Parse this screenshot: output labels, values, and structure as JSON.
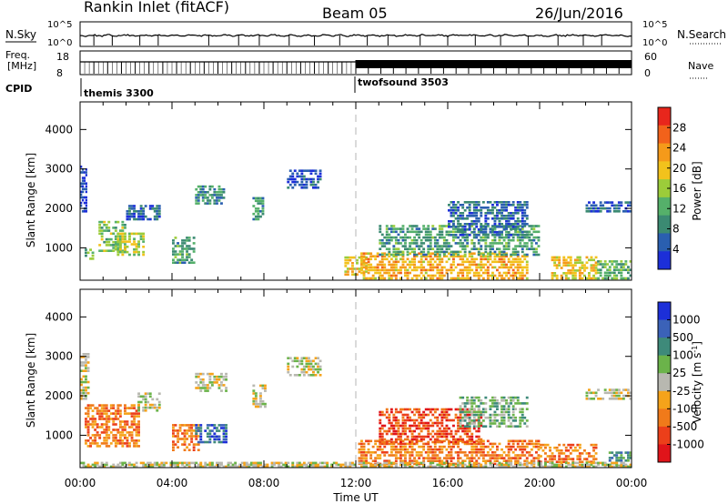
{
  "header": {
    "title": "Rankin Inlet (fitACF)",
    "beam": "Beam 05",
    "date": "26/Jun/2016"
  },
  "panels": {
    "nsky_label": "N.Sky",
    "nsearch_label": "N.Search",
    "nsky_ticks": [
      "10^5",
      "10^0"
    ],
    "nsearch_ticks": [
      "10^5",
      "10^0"
    ],
    "freq_label": "Freq.",
    "freq_unit": "[MHz]",
    "freq_ticks": [
      "18",
      "8"
    ],
    "nave_label": "Nave",
    "nave_ticks": [
      "60",
      "0"
    ],
    "cpid_label": "CPID",
    "cpid_1": "themis 3300",
    "cpid_2": "twofsound 3503"
  },
  "colors": {
    "power_scale": [
      "#1c2fd8",
      "#2a5fb0",
      "#3b8a72",
      "#55b06a",
      "#9ccc3a",
      "#f2c21c",
      "#f59a1a",
      "#f2621b",
      "#e8261c"
    ],
    "velocity_scale": [
      "#1c2fd8",
      "#3b62b8",
      "#3e8a7a",
      "#6bb34a",
      "#b8b8b0",
      "#f5a31a",
      "#f07a1a",
      "#ec3f1a",
      "#e0141a"
    ],
    "dashed_line": "#b4b4b4"
  },
  "chart_data": [
    {
      "type": "heatmap",
      "title": "Power",
      "xlabel": "",
      "ylabel": "Slant Range [km]",
      "xlim": [
        "00:00",
        "24:00"
      ],
      "ylim": [
        180,
        4700
      ],
      "y_ticks": [
        1000,
        2000,
        3000,
        4000
      ],
      "colorbar_label": "Power [dB]",
      "colorbar_ticks": [
        4,
        8,
        12,
        16,
        20,
        24,
        28
      ],
      "colorbar_range": [
        0,
        32
      ],
      "marker_time": "12:00",
      "regions": [
        {
          "t0": 0.0,
          "t1": 0.3,
          "r0": 1900,
          "r1": 3100,
          "level": 3
        },
        {
          "t0": 0.1,
          "t1": 0.6,
          "r0": 700,
          "r1": 1000,
          "level": 14
        },
        {
          "t0": 0.8,
          "t1": 2.0,
          "r0": 900,
          "r1": 1700,
          "level": 16
        },
        {
          "t0": 1.5,
          "t1": 2.8,
          "r0": 800,
          "r1": 1400,
          "level": 18
        },
        {
          "t0": 2.0,
          "t1": 3.5,
          "r0": 1700,
          "r1": 2100,
          "level": 6
        },
        {
          "t0": 4.0,
          "t1": 5.0,
          "r0": 600,
          "r1": 1300,
          "level": 12
        },
        {
          "t0": 5.0,
          "t1": 6.3,
          "r0": 2100,
          "r1": 2600,
          "level": 10
        },
        {
          "t0": 7.5,
          "t1": 8.0,
          "r0": 1700,
          "r1": 2300,
          "level": 11
        },
        {
          "t0": 9.0,
          "t1": 10.5,
          "r0": 2500,
          "r1": 3000,
          "level": 4
        },
        {
          "t0": 11.5,
          "t1": 12.5,
          "r0": 300,
          "r1": 800,
          "level": 22
        },
        {
          "t0": 12.2,
          "t1": 19.5,
          "r0": 200,
          "r1": 900,
          "level": 24
        },
        {
          "t0": 13.0,
          "t1": 20.0,
          "r0": 800,
          "r1": 1600,
          "level": 12
        },
        {
          "t0": 16.0,
          "t1": 19.5,
          "r0": 1300,
          "r1": 2200,
          "level": 7
        },
        {
          "t0": 20.5,
          "t1": 22.5,
          "r0": 200,
          "r1": 800,
          "level": 22
        },
        {
          "t0": 22.0,
          "t1": 24.0,
          "r0": 1900,
          "r1": 2200,
          "level": 6
        },
        {
          "t0": 22.5,
          "t1": 24.0,
          "r0": 200,
          "r1": 700,
          "level": 14
        }
      ]
    },
    {
      "type": "heatmap",
      "title": "Velocity",
      "xlabel": "Time UT",
      "ylabel": "Slant Range [km]",
      "xlim": [
        "00:00",
        "24:00"
      ],
      "ylim": [
        180,
        4700
      ],
      "x_ticks": [
        "00:00",
        "04:00",
        "08:00",
        "12:00",
        "16:00",
        "20:00",
        "00:00"
      ],
      "y_ticks": [
        1000,
        2000,
        3000,
        4000
      ],
      "colorbar_label": "Velocity [m s^-1]",
      "colorbar_ticks": [
        "1000",
        "500",
        "100",
        "25",
        "-25",
        "-100",
        "-500",
        "-1000"
      ],
      "marker_time": "12:00",
      "regions": [
        {
          "t0": 0.0,
          "t1": 0.4,
          "r0": 1900,
          "r1": 3100,
          "level": 4
        },
        {
          "t0": 0.2,
          "t1": 2.6,
          "r0": 700,
          "r1": 1800,
          "level": 6
        },
        {
          "t0": 2.5,
          "t1": 3.5,
          "r0": 1600,
          "r1": 2100,
          "level": 4
        },
        {
          "t0": 4.0,
          "t1": 5.2,
          "r0": 600,
          "r1": 1300,
          "level": 6
        },
        {
          "t0": 5.0,
          "t1": 6.4,
          "r0": 800,
          "r1": 1300,
          "level": 1
        },
        {
          "t0": 5.0,
          "t1": 6.4,
          "r0": 2100,
          "r1": 2600,
          "level": 4
        },
        {
          "t0": 7.5,
          "t1": 8.1,
          "r0": 1700,
          "r1": 2300,
          "level": 4
        },
        {
          "t0": 9.0,
          "t1": 10.5,
          "r0": 2500,
          "r1": 3000,
          "level": 4
        },
        {
          "t0": 12.1,
          "t1": 20.0,
          "r0": 250,
          "r1": 900,
          "level": 6
        },
        {
          "t0": 13.0,
          "t1": 17.5,
          "r0": 800,
          "r1": 1700,
          "level": 7
        },
        {
          "t0": 16.5,
          "t1": 19.5,
          "r0": 1200,
          "r1": 2000,
          "level": 3
        },
        {
          "t0": 20.0,
          "t1": 22.5,
          "r0": 300,
          "r1": 800,
          "level": 6
        },
        {
          "t0": 22.0,
          "t1": 24.0,
          "r0": 1900,
          "r1": 2200,
          "level": 4
        },
        {
          "t0": 23.0,
          "t1": 24.0,
          "r0": 200,
          "r1": 600,
          "level": 2
        },
        {
          "t0": 0.0,
          "t1": 24.0,
          "r0": 180,
          "r1": 320,
          "level": 4
        }
      ]
    }
  ]
}
